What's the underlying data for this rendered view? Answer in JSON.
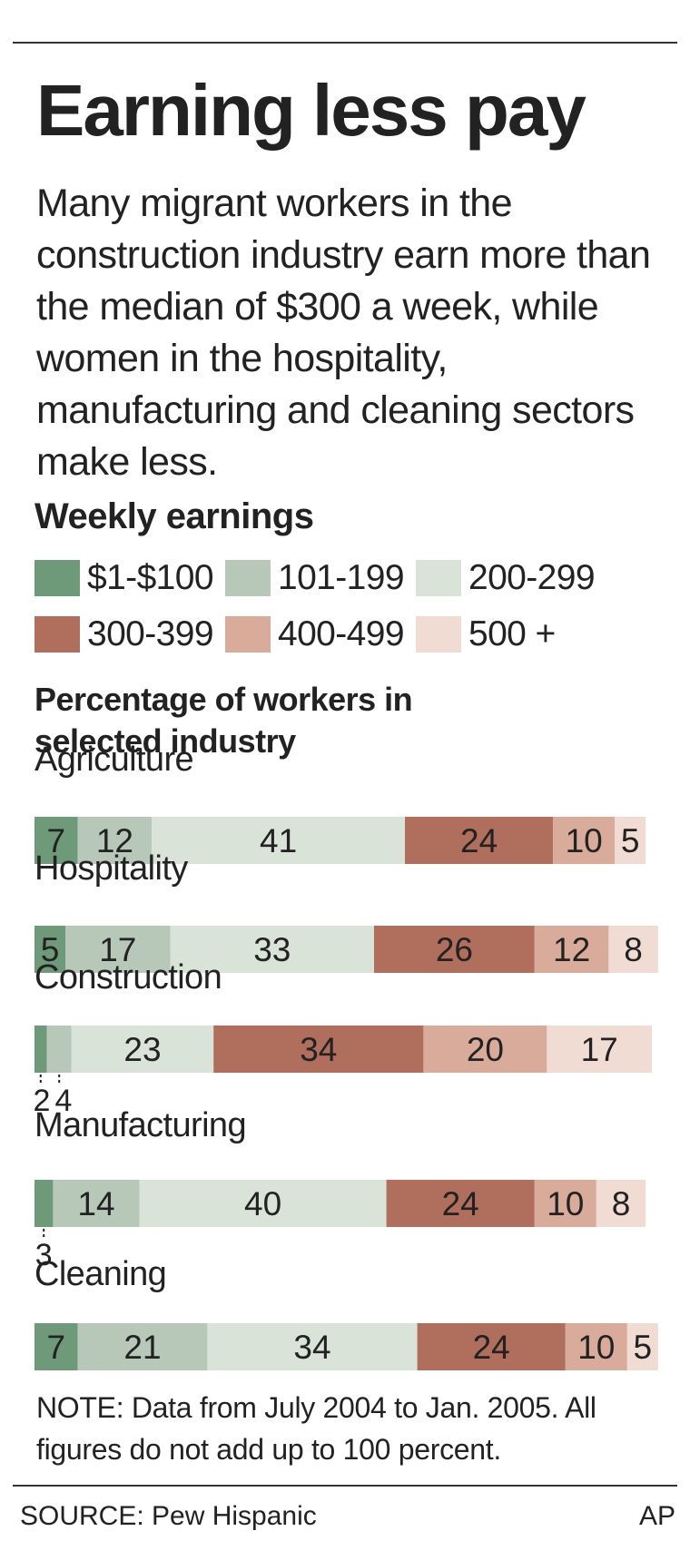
{
  "header": {
    "title": "Earning less pay",
    "subtitle": "Many migrant workers in the construction industry earn more than the median of $300 a week, while women in the hospitality, manufacturing and cleaning sectors make less.",
    "section_label": "Weekly earnings"
  },
  "legend": [
    {
      "label": "$1-$100",
      "color": "#6e9a7a"
    },
    {
      "label": "101-199",
      "color": "#b7c7b8"
    },
    {
      "label": "200-299",
      "color": "#d9e3d8"
    },
    {
      "label": "300-399",
      "color": "#b06e5c"
    },
    {
      "label": "400-499",
      "color": "#d9ab9b"
    },
    {
      "label": "500 +",
      "color": "#f1dcd4"
    }
  ],
  "chart_data": {
    "type": "bar",
    "orientation": "horizontal",
    "stacked": true,
    "title": "Earning less pay",
    "xlabel": "Percentage of workers in selected industry",
    "categories": [
      "Agriculture",
      "Hospitality",
      "Construction",
      "Manufacturing",
      "Cleaning"
    ],
    "series": [
      {
        "name": "$1-$100",
        "values": [
          7,
          5,
          2,
          3,
          7
        ]
      },
      {
        "name": "101-199",
        "values": [
          12,
          17,
          4,
          14,
          21
        ]
      },
      {
        "name": "200-299",
        "values": [
          41,
          33,
          23,
          40,
          34
        ]
      },
      {
        "name": "300-399",
        "values": [
          24,
          26,
          34,
          24,
          24
        ]
      },
      {
        "name": "400-499",
        "values": [
          10,
          12,
          20,
          10,
          10
        ]
      },
      {
        "name": "500 +",
        "values": [
          5,
          8,
          17,
          8,
          5
        ]
      }
    ],
    "xlim": [
      0,
      100
    ],
    "legend_position": "top"
  },
  "footer": {
    "note": "NOTE: Data from July 2004 to Jan. 2005. All figures do not add up to 100 percent.",
    "source": "SOURCE: Pew Hispanic",
    "credit": "AP"
  }
}
